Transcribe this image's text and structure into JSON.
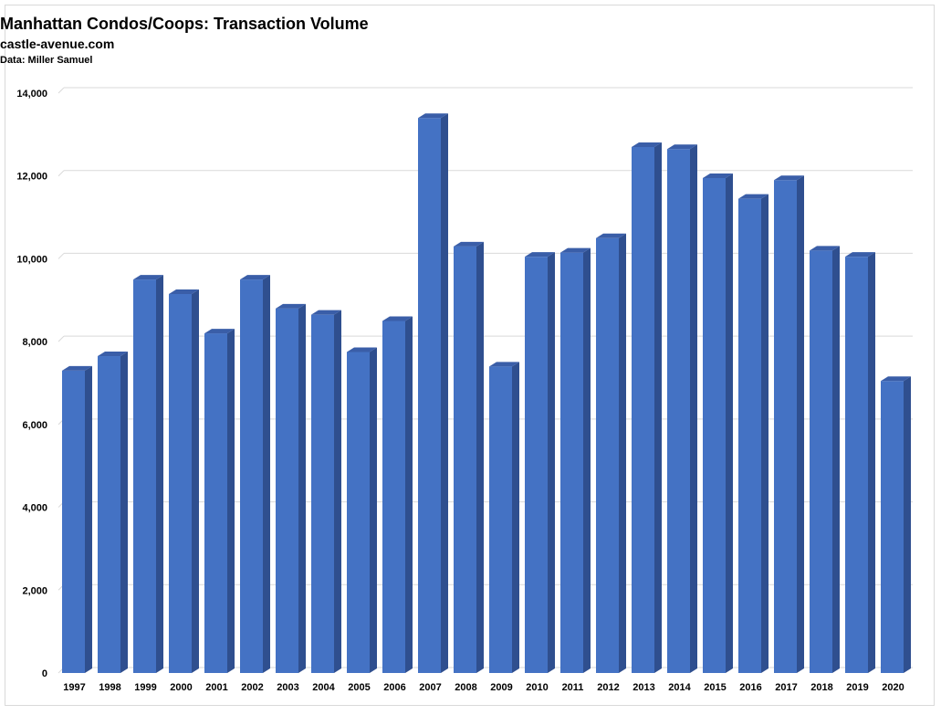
{
  "chart_data": {
    "type": "bar",
    "title": "Manhattan Condos/Coops: Transaction Volume",
    "subtitle": "castle-avenue.com",
    "source": "Data: Miller Samuel",
    "xlabel": "",
    "ylabel": "",
    "ylim": [
      0,
      14000
    ],
    "yticks": [
      0,
      2000,
      4000,
      6000,
      8000,
      10000,
      12000,
      14000
    ],
    "ytick_labels": [
      "0",
      "2,000",
      "4,000",
      "6,000",
      "8,000",
      "10,000",
      "12,000",
      "14,000"
    ],
    "grid": true,
    "legend": "none",
    "bar_color": "#4472c4",
    "categories": [
      "1997",
      "1998",
      "1999",
      "2000",
      "2001",
      "2002",
      "2003",
      "2004",
      "2005",
      "2006",
      "2007",
      "2008",
      "2009",
      "2010",
      "2011",
      "2012",
      "2013",
      "2014",
      "2015",
      "2016",
      "2017",
      "2018",
      "2019",
      "2020"
    ],
    "values": [
      7300,
      7650,
      9500,
      9150,
      8200,
      9500,
      8800,
      8650,
      7750,
      8500,
      13400,
      10300,
      7400,
      10050,
      10150,
      10500,
      12700,
      12650,
      11950,
      11450,
      11900,
      10200,
      10050,
      7050
    ]
  }
}
